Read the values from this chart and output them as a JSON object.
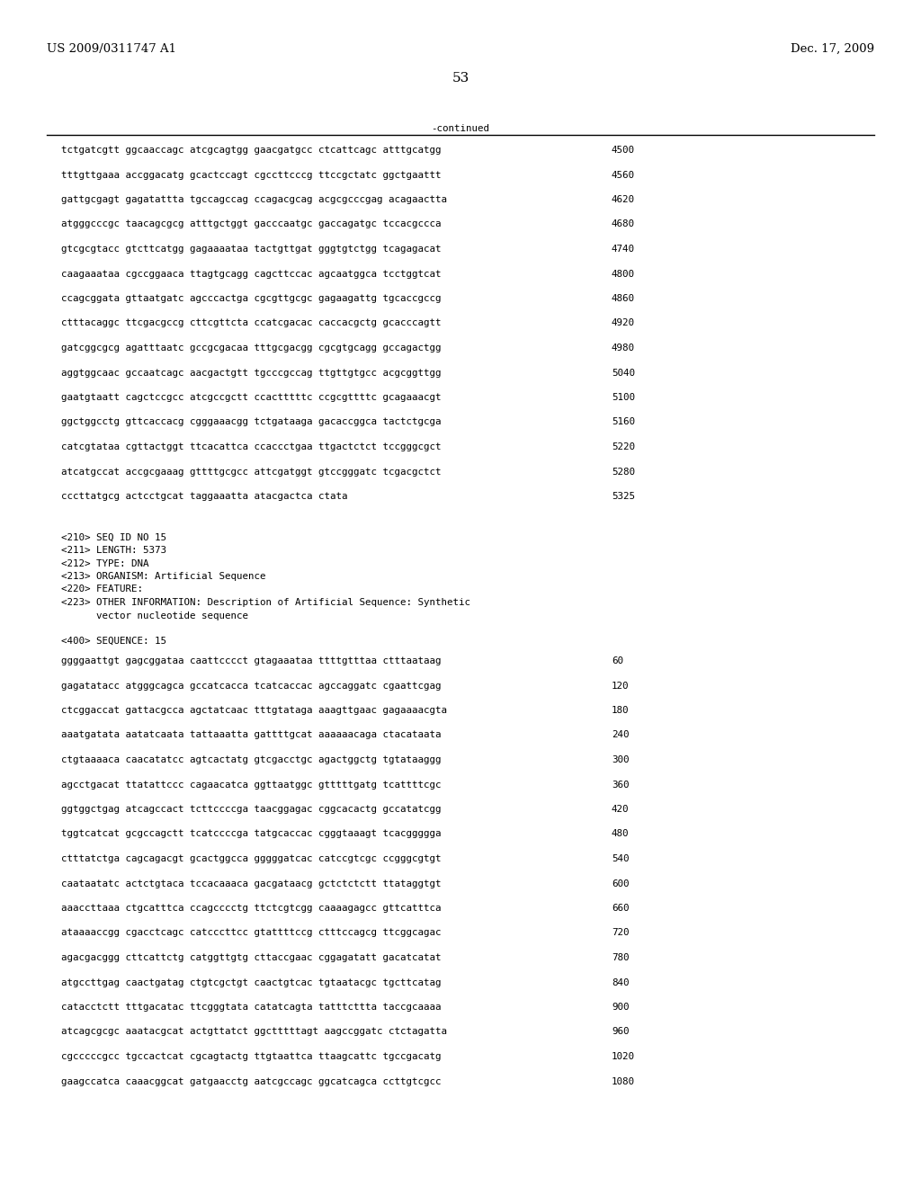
{
  "header_left": "US 2009/0311747 A1",
  "header_right": "Dec. 17, 2009",
  "page_number": "53",
  "continued_label": "-continued",
  "background_color": "#ffffff",
  "text_color": "#000000",
  "font_size_header": 9.5,
  "font_size_body": 7.8,
  "font_size_page": 11,
  "sequence_lines_top": [
    {
      "seq": "tctgatcgtt ggcaaccagc atcgcagtgg gaacgatgcc ctcattcagc atttgcatgg",
      "num": "4500"
    },
    {
      "seq": "tttgttgaaa accggacatg gcactccagt cgccttcccg ttccgctatc ggctgaattt",
      "num": "4560"
    },
    {
      "seq": "gattgcgagt gagatattta tgccagccag ccagacgcag acgcgcccgag acagaactta",
      "num": "4620"
    },
    {
      "seq": "atgggcccgc taacagcgcg atttgctggt gacccaatgc gaccagatgc tccacgccca",
      "num": "4680"
    },
    {
      "seq": "gtcgcgtacc gtcttcatgg gagaaaataa tactgttgat gggtgtctgg tcagagacat",
      "num": "4740"
    },
    {
      "seq": "caagaaataa cgccggaaca ttagtgcagg cagcttccac agcaatggca tcctggtcat",
      "num": "4800"
    },
    {
      "seq": "ccagcggata gttaatgatc agcccactga cgcgttgcgc gagaagattg tgcaccgccg",
      "num": "4860"
    },
    {
      "seq": "ctttacaggc ttcgacgccg cttcgttcta ccatcgacac caccacgctg gcacccagtt",
      "num": "4920"
    },
    {
      "seq": "gatcggcgcg agatttaatc gccgcgacaa tttgcgacgg cgcgtgcagg gccagactgg",
      "num": "4980"
    },
    {
      "seq": "aggtggcaac gccaatcagc aacgactgtt tgcccgccag ttgttgtgcc acgcggttgg",
      "num": "5040"
    },
    {
      "seq": "gaatgtaatt cagctccgcc atcgccgctt ccactttttc ccgcgttttc gcagaaacgt",
      "num": "5100"
    },
    {
      "seq": "ggctggcctg gttcaccacg cgggaaacgg tctgataaga gacaccggca tactctgcga",
      "num": "5160"
    },
    {
      "seq": "catcgtataa cgttactggt ttcacattca ccaccctgaa ttgactctct tccgggcgct",
      "num": "5220"
    },
    {
      "seq": "atcatgccat accgcgaaag gttttgcgcc attcgatggt gtccgggatc tcgacgctct",
      "num": "5280"
    },
    {
      "seq": "cccttatgcg actcctgcat taggaaatta atacgactca ctata",
      "num": "5325"
    }
  ],
  "metadata_lines": [
    "<210> SEQ ID NO 15",
    "<211> LENGTH: 5373",
    "<212> TYPE: DNA",
    "<213> ORGANISM: Artificial Sequence",
    "<220> FEATURE:",
    "<223> OTHER INFORMATION: Description of Artificial Sequence: Synthetic",
    "      vector nucleotide sequence"
  ],
  "seq400_label": "<400> SEQUENCE: 15",
  "sequence_lines_bottom": [
    {
      "seq": "ggggaattgt gagcggataa caattcccct gtagaaataa ttttgtttaa ctttaataag",
      "num": "60"
    },
    {
      "seq": "gagatatacc atgggcagca gccatcacca tcatcaccac agccaggatc cgaattcgag",
      "num": "120"
    },
    {
      "seq": "ctcggaccat gattacgcca agctatcaac tttgtataga aaagttgaac gagaaaacgta",
      "num": "180"
    },
    {
      "seq": "aaatgatata aatatcaata tattaaatta gattttgcat aaaaaacaga ctacataata",
      "num": "240"
    },
    {
      "seq": "ctgtaaaaca caacatatcc agtcactatg gtcgacctgc agactggctg tgtataaggg",
      "num": "300"
    },
    {
      "seq": "agcctgacat ttatattccc cagaacatca ggttaatggc gtttttgatg tcattttcgc",
      "num": "360"
    },
    {
      "seq": "ggtggctgag atcagccact tcttccccga taacggagac cggcacactg gccatatcgg",
      "num": "420"
    },
    {
      "seq": "tggtcatcat gcgccagctt tcatccccga tatgcaccac cgggtaaagt tcacggggga",
      "num": "480"
    },
    {
      "seq": "ctttatctga cagcagacgt gcactggcca gggggatcac catccgtcgc ccgggcgtgt",
      "num": "540"
    },
    {
      "seq": "caataatatc actctgtaca tccacaaaca gacgataacg gctctctctt ttataggtgt",
      "num": "600"
    },
    {
      "seq": "aaaccttaaa ctgcatttca ccagcccctg ttctcgtcgg caaaagagcc gttcatttca",
      "num": "660"
    },
    {
      "seq": "ataaaaccgg cgacctcagc catcccttcc gtattttccg ctttccagcg ttcggcagac",
      "num": "720"
    },
    {
      "seq": "agacgacggg cttcattctg catggttgtg cttaccgaac cggagatatt gacatcatat",
      "num": "780"
    },
    {
      "seq": "atgccttgag caactgatag ctgtcgctgt caactgtcac tgtaatacgc tgcttcatag",
      "num": "840"
    },
    {
      "seq": "catacctctt tttgacatac ttcgggtata catatcagta tatttcttta taccgcaaaa",
      "num": "900"
    },
    {
      "seq": "atcagcgcgc aaatacgcat actgttatct ggctttttagt aagccggatc ctctagatta",
      "num": "960"
    },
    {
      "seq": "cgcccccgcc tgccactcat cgcagtactg ttgtaattca ttaagcattc tgccgacatg",
      "num": "1020"
    },
    {
      "seq": "gaagccatca caaacggcat gatgaacctg aatcgccagc ggcatcagca ccttgtcgcc",
      "num": "1080"
    }
  ]
}
